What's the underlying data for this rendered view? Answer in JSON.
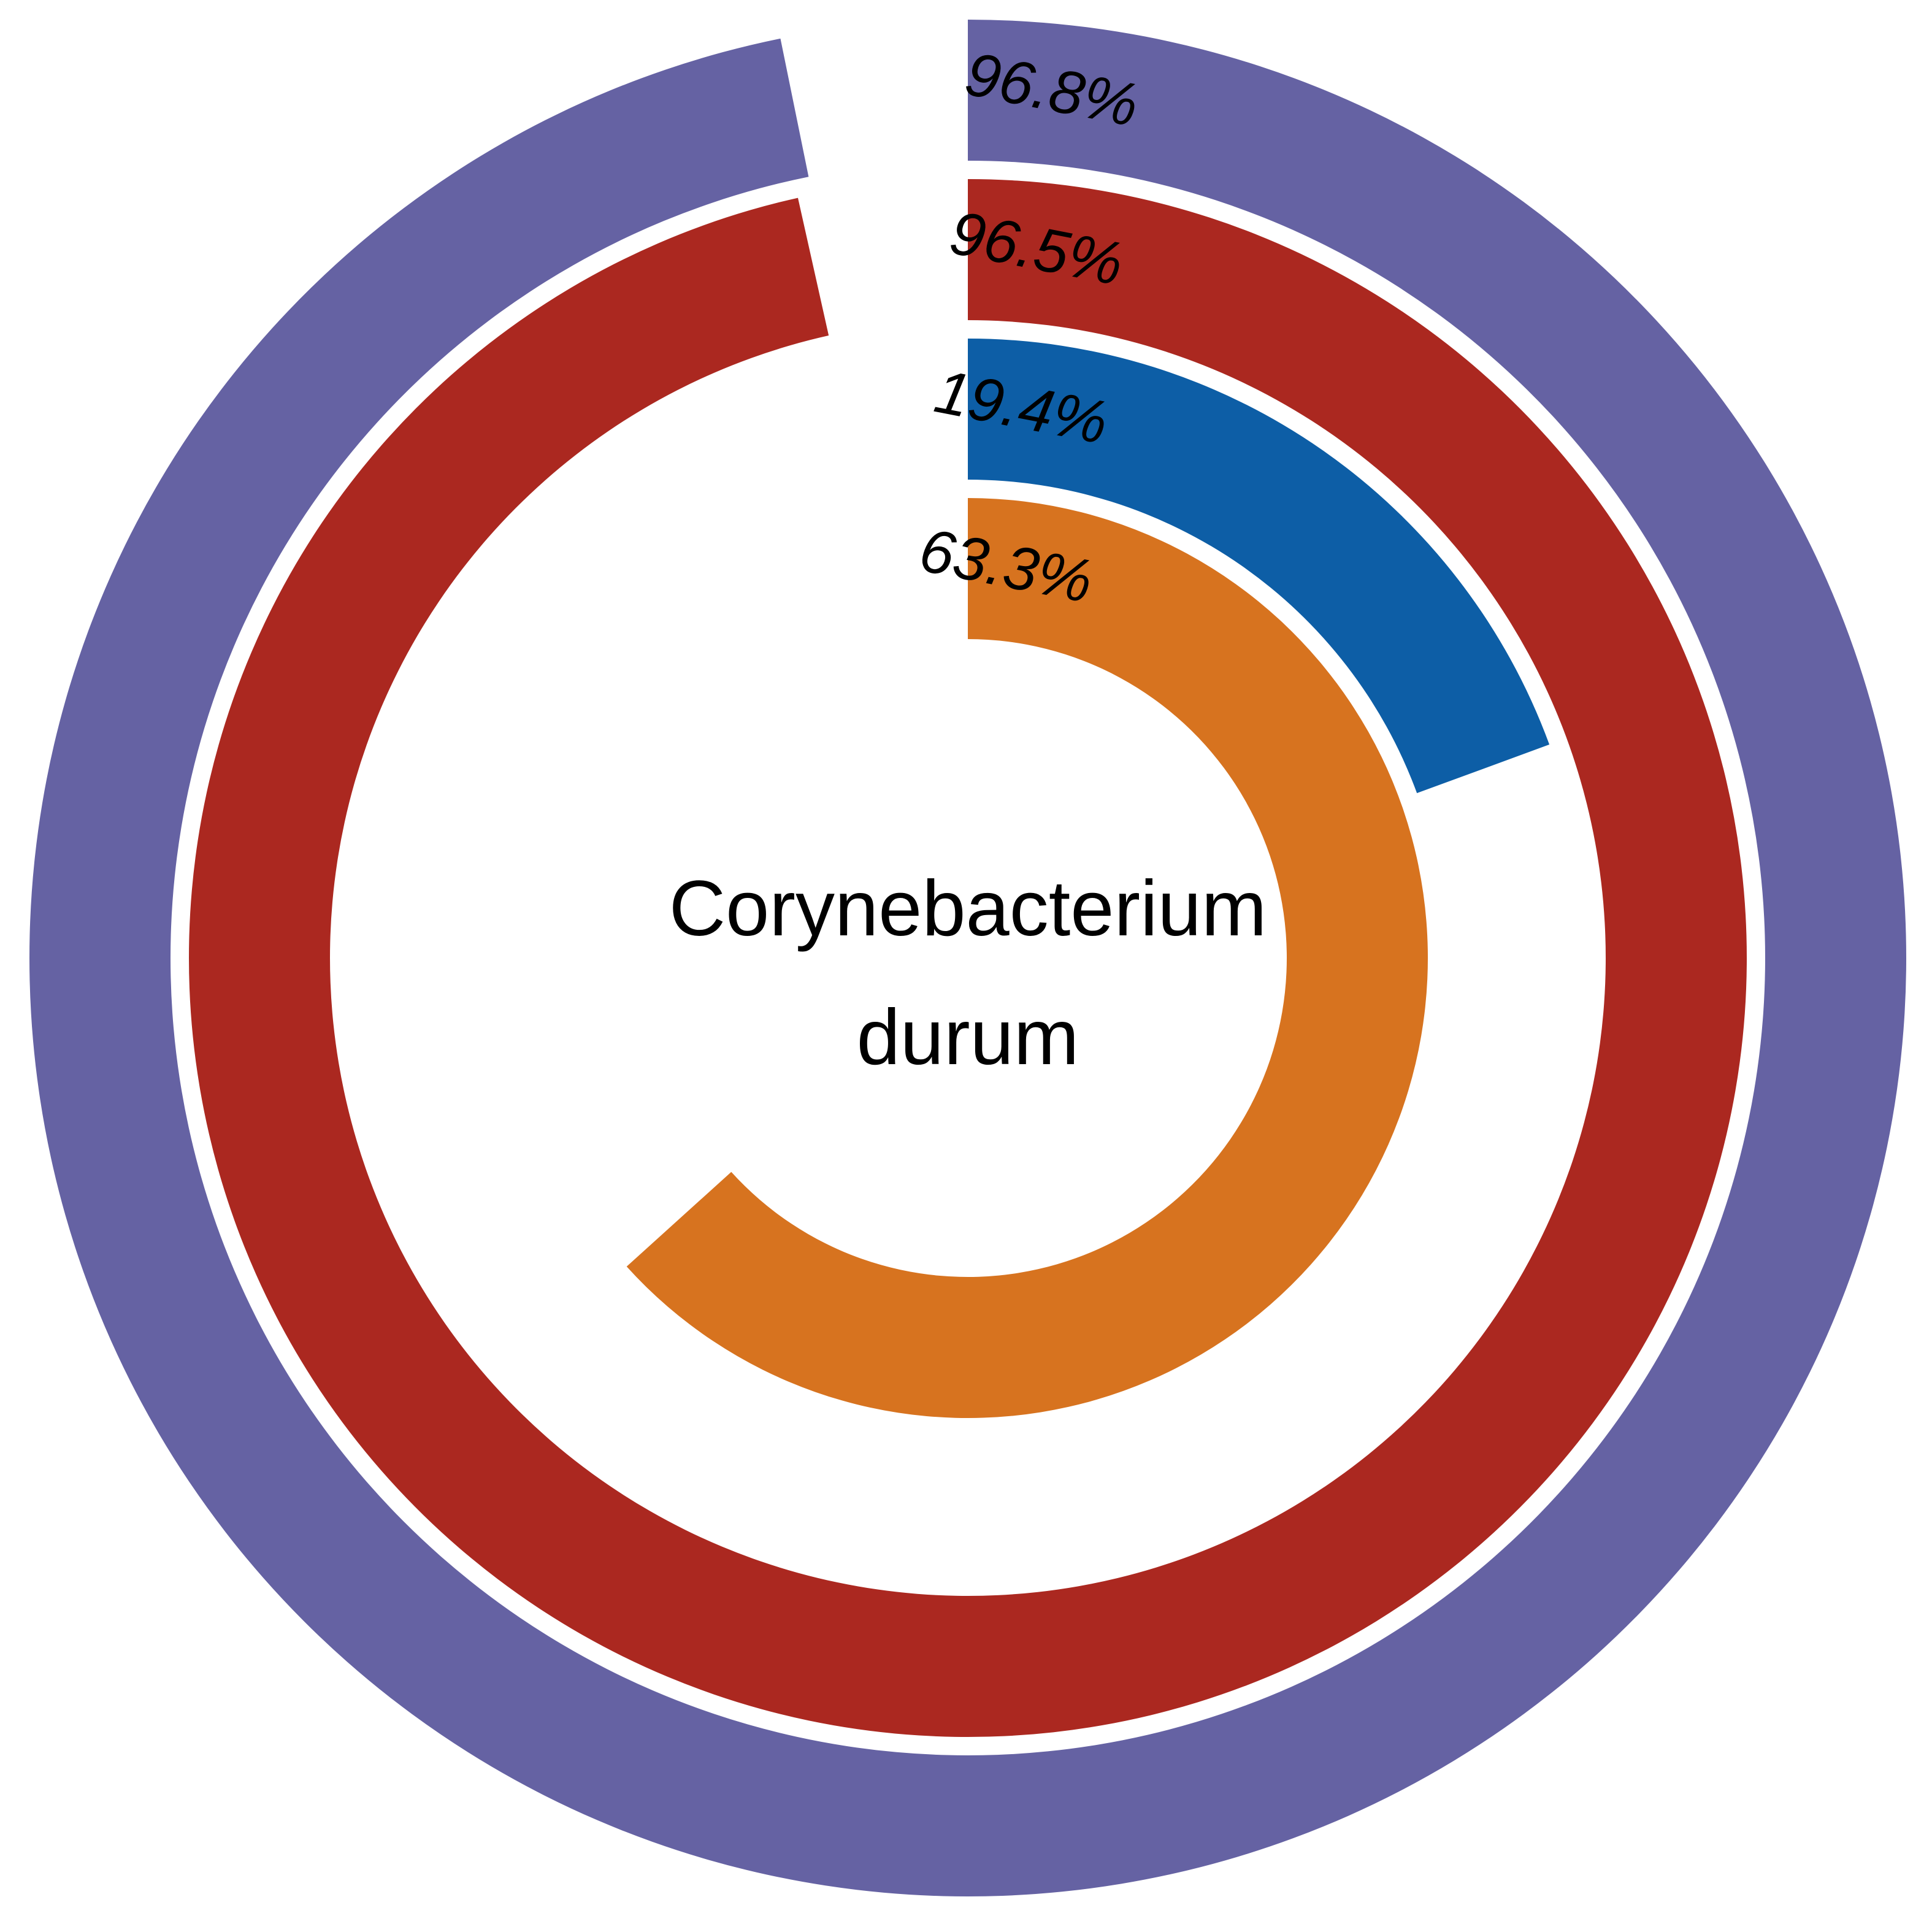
{
  "chart_data": {
    "type": "radial-bar",
    "center_label": [
      "Corynebacterium",
      "durum"
    ],
    "rings": [
      {
        "value": 96.8,
        "label": "96.8%",
        "color": "#6562a3"
      },
      {
        "value": 96.5,
        "label": "96.5%",
        "color": "#ab2820"
      },
      {
        "value": 19.4,
        "label": "19.4%",
        "color": "#0d5ea6"
      },
      {
        "value": 63.3,
        "label": "63.3%",
        "color": "#d7731f"
      }
    ],
    "max_value": 100,
    "direction": "clockwise from top"
  }
}
